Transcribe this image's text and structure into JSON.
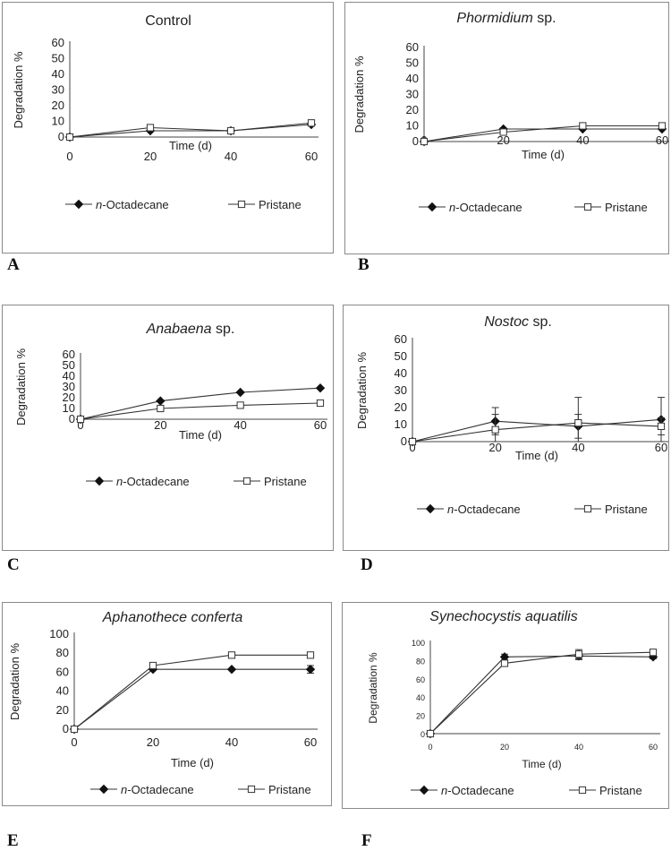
{
  "panels": [
    {
      "letter": "A",
      "chart_data": {
        "type": "line",
        "title": "Control",
        "title_italic_part": "",
        "xlabel": "Time (d)",
        "ylabel": "Degradation %",
        "x": [
          0,
          20,
          40,
          60
        ],
        "xlim": [
          0,
          60
        ],
        "ylim": [
          0,
          60
        ],
        "yticks": [
          0,
          10,
          20,
          30,
          40,
          50,
          60
        ],
        "xticks": [
          0,
          20,
          40,
          60
        ],
        "grid": false,
        "legend": "bottom",
        "series": [
          {
            "name": "n-Octadecane",
            "name_italic": "n",
            "name_rest": "-Octadecane",
            "marker": "diamond",
            "values": [
              0,
              4,
              4,
              8
            ],
            "err": [
              0,
              0,
              0,
              0
            ]
          },
          {
            "name": "Pristane",
            "name_italic": "",
            "name_rest": "Pristane",
            "marker": "square",
            "values": [
              0,
              6,
              4,
              9
            ],
            "err": [
              0,
              0,
              0,
              0
            ]
          }
        ]
      }
    },
    {
      "letter": "B",
      "chart_data": {
        "type": "line",
        "title": "Phormidium sp.",
        "title_italic_part": "Phormidium",
        "xlabel": "Time (d)",
        "ylabel": "Degradation %",
        "x": [
          0,
          20,
          40,
          60
        ],
        "xlim": [
          0,
          60
        ],
        "ylim": [
          0,
          60
        ],
        "yticks": [
          0,
          10,
          20,
          30,
          40,
          50,
          60
        ],
        "xticks": [
          0,
          20,
          40,
          60
        ],
        "grid": false,
        "legend": "bottom",
        "series": [
          {
            "name": "n-Octadecane",
            "name_italic": "n",
            "name_rest": "-Octadecane",
            "marker": "diamond",
            "values": [
              0,
              8,
              8,
              8
            ],
            "err": [
              0,
              0,
              0,
              0
            ]
          },
          {
            "name": "Pristane",
            "name_italic": "",
            "name_rest": "Pristane",
            "marker": "square",
            "values": [
              0,
              6,
              10,
              10
            ],
            "err": [
              0,
              0,
              0,
              0
            ]
          }
        ]
      }
    },
    {
      "letter": "C",
      "chart_data": {
        "type": "line",
        "title": "Anabaena sp.",
        "title_italic_part": "Anabaena",
        "xlabel": "Time (d)",
        "ylabel": "Degradation %",
        "x": [
          0,
          20,
          40,
          60
        ],
        "xlim": [
          0,
          60
        ],
        "ylim": [
          0,
          60
        ],
        "yticks": [
          0,
          10,
          20,
          30,
          40,
          50,
          60
        ],
        "xticks": [
          0,
          20,
          40,
          60
        ],
        "grid": false,
        "legend": "bottom",
        "series": [
          {
            "name": "n-Octadecane",
            "name_italic": "n",
            "name_rest": "-Octadecane",
            "marker": "diamond",
            "values": [
              0,
              17,
              25,
              29
            ],
            "err": [
              0,
              0,
              0,
              0
            ]
          },
          {
            "name": "Pristane",
            "name_italic": "",
            "name_rest": "Pristane",
            "marker": "square",
            "values": [
              0,
              10,
              13,
              15
            ],
            "err": [
              0,
              0,
              0,
              0
            ]
          }
        ]
      }
    },
    {
      "letter": "D",
      "chart_data": {
        "type": "line",
        "title": "Nostoc sp.",
        "title_italic_part": "Nostoc",
        "xlabel": "Time (d)",
        "ylabel": "Degradation %",
        "x": [
          0,
          20,
          40,
          60
        ],
        "xlim": [
          0,
          60
        ],
        "ylim": [
          0,
          60
        ],
        "yticks": [
          0,
          10,
          20,
          30,
          40,
          50,
          60
        ],
        "xticks": [
          0,
          20,
          40,
          60
        ],
        "grid": false,
        "legend": "bottom",
        "series": [
          {
            "name": "n-Octadecane",
            "name_italic": "n",
            "name_rest": "-Octadecane",
            "marker": "diamond",
            "values": [
              0,
              12,
              9,
              13
            ],
            "err": [
              0,
              8,
              7,
              13
            ]
          },
          {
            "name": "Pristane",
            "name_italic": "",
            "name_rest": "Pristane",
            "marker": "square",
            "values": [
              0,
              7,
              11,
              9
            ],
            "err": [
              0,
              9,
              15,
              5
            ]
          }
        ]
      }
    },
    {
      "letter": "E",
      "chart_data": {
        "type": "line",
        "title": "Aphanothece conferta",
        "title_italic_part": "Aphanothece conferta",
        "xlabel": "Time (d)",
        "ylabel": "Degradation %",
        "x": [
          0,
          20,
          40,
          60
        ],
        "xlim": [
          0,
          60
        ],
        "ylim": [
          0,
          100
        ],
        "yticks": [
          0,
          20,
          40,
          60,
          80,
          100
        ],
        "xticks": [
          0,
          20,
          40,
          60
        ],
        "grid": false,
        "legend": "bottom",
        "series": [
          {
            "name": "n-Octadecane",
            "name_italic": "n",
            "name_rest": "-Octadecane",
            "marker": "diamond",
            "values": [
              0,
              63,
              63,
              63
            ],
            "err": [
              0,
              0,
              0,
              4
            ]
          },
          {
            "name": "Pristane",
            "name_italic": "",
            "name_rest": "Pristane",
            "marker": "square",
            "values": [
              0,
              67,
              78,
              78
            ],
            "err": [
              0,
              0,
              0,
              3
            ]
          }
        ]
      }
    },
    {
      "letter": "F",
      "chart_data": {
        "type": "line",
        "title": "Synechocystis aquatilis",
        "title_italic_part": "Synechocystis aquatilis",
        "xlabel": "Time (d)",
        "ylabel": "Degradation %",
        "x": [
          0,
          20,
          40,
          60
        ],
        "xlim": [
          0,
          60
        ],
        "ylim": [
          0,
          100
        ],
        "yticks": [
          0,
          20,
          40,
          60,
          80,
          100
        ],
        "xticks": [
          0,
          20,
          40,
          60
        ],
        "grid": false,
        "legend": "bottom",
        "series": [
          {
            "name": "n-Octadecane",
            "name_italic": "n",
            "name_rest": "-Octadecane",
            "marker": "diamond",
            "values": [
              0,
              84,
              85,
              84
            ],
            "err": [
              0,
              3,
              4,
              2
            ]
          },
          {
            "name": "Pristane",
            "name_italic": "",
            "name_rest": "Pristane",
            "marker": "square",
            "values": [
              0,
              77,
              87,
              89
            ],
            "err": [
              0,
              3,
              5,
              2
            ]
          }
        ]
      }
    }
  ]
}
